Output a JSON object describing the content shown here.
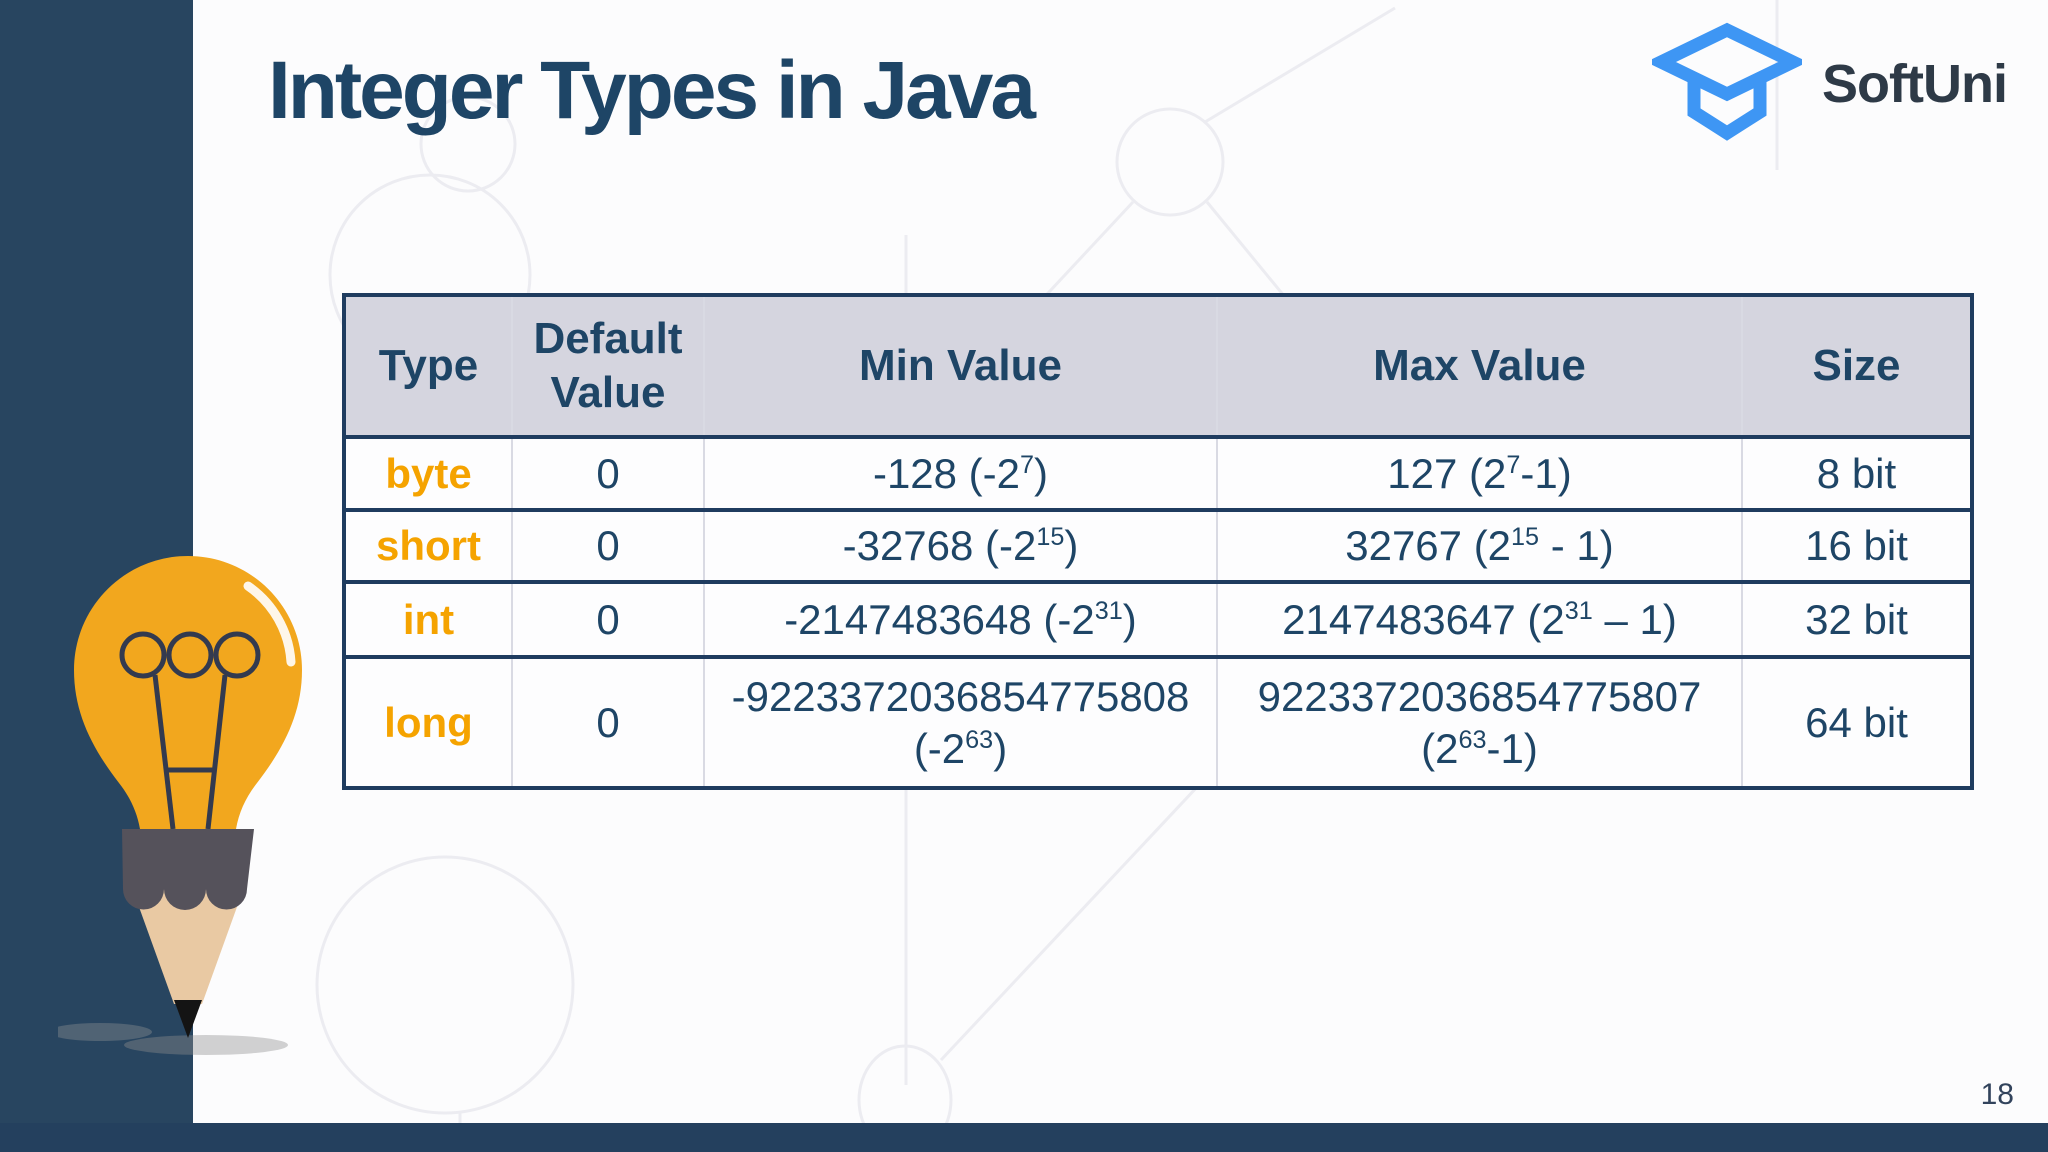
{
  "slide": {
    "title": "Integer Types in Java",
    "page_number": "18"
  },
  "logo": {
    "text": "SoftUni",
    "icon": "graduation-cap-icon"
  },
  "table": {
    "headers": [
      "Type",
      "Default Value",
      "Min Value",
      "Max Value",
      "Size"
    ],
    "rows": [
      {
        "type": "byte",
        "default": "0",
        "min": "-128 (-2^7)",
        "max": "127 (2^7-1)",
        "size": "8 bit"
      },
      {
        "type": "short",
        "default": "0",
        "min": "-32768 (-2^15)",
        "max": "32767 (2^15 - 1)",
        "size": "16 bit"
      },
      {
        "type": "int",
        "default": "0",
        "min": "-2147483648 (-2^31)",
        "max": "2147483647 (2^31 – 1)",
        "size": "32 bit"
      },
      {
        "type": "long",
        "default": "0",
        "min": "-9223372036854775808\n(-2^63)",
        "max": "9223372036854775807\n(2^63-1)",
        "size": "64 bit"
      }
    ]
  },
  "colors": {
    "sidebar_navy": "#284560",
    "footer_navy": "#24405e",
    "text_navy": "#1e4566",
    "table_border_navy": "#1f3c5f",
    "table_header_bg": "#d5d5df",
    "type_orange": "#f5a300",
    "bulb_orange": "#f2a71e",
    "logo_blue": "#3e96f4",
    "logo_text": "#2e3a47"
  }
}
